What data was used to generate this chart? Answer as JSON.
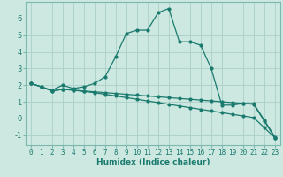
{
  "xlabel": "Humidex (Indice chaleur)",
  "background_color": "#cce8e0",
  "grid_color": "#aacfc8",
  "line_color": "#1a7a6e",
  "spine_color": "#7ab8b0",
  "xlim": [
    -0.5,
    23.5
  ],
  "ylim": [
    -1.6,
    7.0
  ],
  "xticks": [
    0,
    1,
    2,
    3,
    4,
    5,
    6,
    7,
    8,
    9,
    10,
    11,
    12,
    13,
    14,
    15,
    16,
    17,
    18,
    19,
    20,
    21,
    22,
    23
  ],
  "yticks": [
    -1,
    0,
    1,
    2,
    3,
    4,
    5,
    6
  ],
  "line1_x": [
    0,
    1,
    2,
    3,
    4,
    5,
    6,
    7,
    8,
    9,
    10,
    11,
    12,
    13,
    14,
    15,
    16,
    17,
    18,
    19,
    20,
    21,
    22,
    23
  ],
  "line1_y": [
    2.1,
    1.9,
    1.7,
    2.0,
    1.8,
    1.9,
    2.1,
    2.5,
    3.7,
    5.1,
    5.3,
    5.3,
    6.35,
    6.6,
    4.6,
    4.6,
    4.4,
    3.0,
    0.8,
    0.8,
    0.9,
    0.9,
    -0.1,
    -1.1
  ],
  "line2_x": [
    0,
    1,
    2,
    3,
    4,
    5,
    6,
    7,
    8,
    9,
    10,
    11,
    12,
    13,
    14,
    15,
    16,
    17,
    18,
    19,
    20,
    21,
    22,
    23
  ],
  "line2_y": [
    2.1,
    1.9,
    1.65,
    1.75,
    1.7,
    1.65,
    1.6,
    1.55,
    1.5,
    1.45,
    1.4,
    1.35,
    1.3,
    1.25,
    1.2,
    1.15,
    1.1,
    1.05,
    1.0,
    0.95,
    0.9,
    0.85,
    -0.15,
    -1.15
  ],
  "line3_x": [
    0,
    1,
    2,
    3,
    4,
    5,
    6,
    7,
    8,
    9,
    10,
    11,
    12,
    13,
    14,
    15,
    16,
    17,
    18,
    19,
    20,
    21,
    22,
    23
  ],
  "line3_y": [
    2.1,
    1.9,
    1.65,
    1.75,
    1.7,
    1.62,
    1.55,
    1.45,
    1.35,
    1.25,
    1.15,
    1.05,
    0.95,
    0.85,
    0.75,
    0.65,
    0.55,
    0.45,
    0.35,
    0.25,
    0.15,
    0.05,
    -0.55,
    -1.15
  ],
  "xlabel_fontsize": 6.5,
  "tick_fontsize": 5.5,
  "marker_size": 2.0,
  "line_width": 0.9
}
